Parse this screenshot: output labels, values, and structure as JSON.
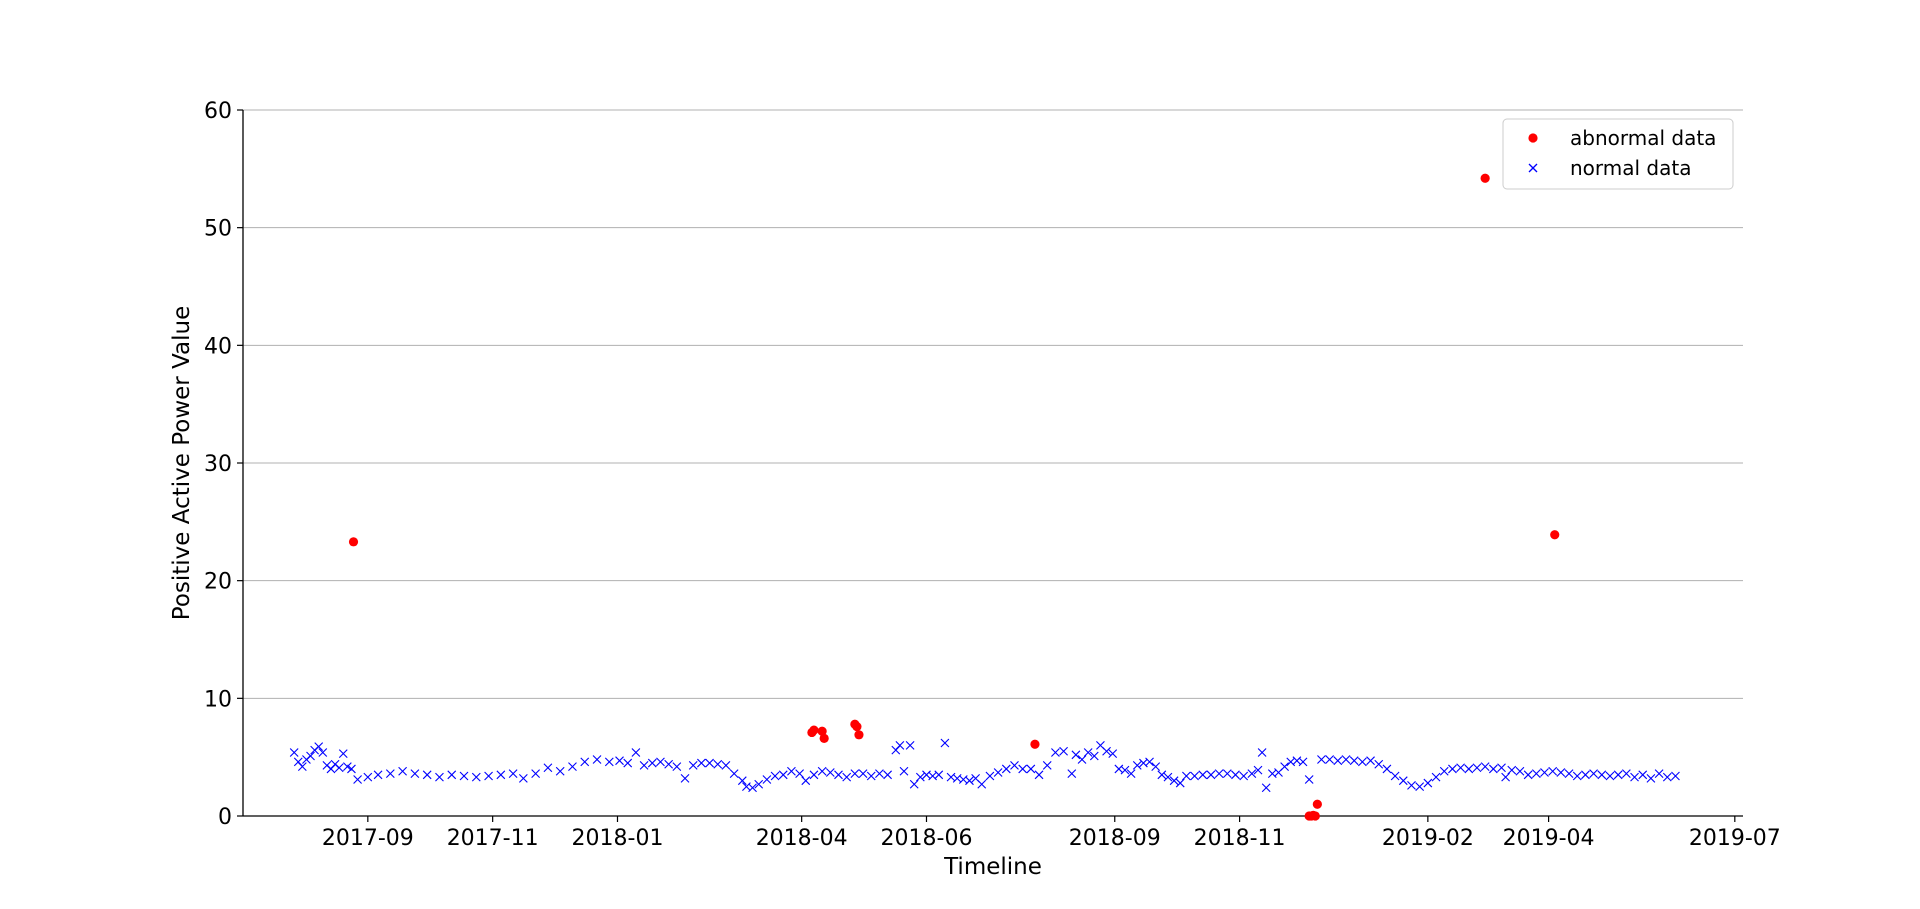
{
  "chart_data": {
    "type": "scatter",
    "xlabel": "Timeline",
    "ylabel": "Positive Active Power Value",
    "ylim": [
      0,
      60
    ],
    "xlim": [
      "2017-07-02",
      "2019-07-05"
    ],
    "yticks": [
      0,
      10,
      20,
      30,
      40,
      50,
      60
    ],
    "xticks": [
      "2017-09",
      "2017-11",
      "2018-01",
      "2018-04",
      "2018-06",
      "2018-09",
      "2018-11",
      "2019-02",
      "2019-04",
      "2019-07"
    ],
    "grid": "horizontal",
    "legend_position": "top-right",
    "series": [
      {
        "name": "abnormal data",
        "marker": "circle",
        "color": "#ff0000",
        "points": [
          [
            "2017-08-25",
            23.3
          ],
          [
            "2018-04-06",
            7.1
          ],
          [
            "2018-04-07",
            7.3
          ],
          [
            "2018-04-11",
            7.2
          ],
          [
            "2018-04-12",
            6.6
          ],
          [
            "2018-04-27",
            7.8
          ],
          [
            "2018-04-28",
            7.6
          ],
          [
            "2018-04-29",
            6.9
          ],
          [
            "2018-07-24",
            6.1
          ],
          [
            "2018-12-05",
            0.0
          ],
          [
            "2018-12-06",
            0.0
          ],
          [
            "2018-12-07",
            0.05
          ],
          [
            "2018-12-08",
            0.0
          ],
          [
            "2018-12-09",
            1.0
          ],
          [
            "2019-03-01",
            54.2
          ],
          [
            "2019-04-04",
            23.9
          ]
        ]
      },
      {
        "name": "normal data",
        "marker": "x",
        "color": "#0000ff",
        "points": [
          [
            "2017-07-27",
            5.4
          ],
          [
            "2017-07-29",
            4.6
          ],
          [
            "2017-07-31",
            4.2
          ],
          [
            "2017-08-02",
            4.8
          ],
          [
            "2017-08-04",
            5.1
          ],
          [
            "2017-08-06",
            5.6
          ],
          [
            "2017-08-08",
            5.9
          ],
          [
            "2017-08-10",
            5.4
          ],
          [
            "2017-08-12",
            4.3
          ],
          [
            "2017-08-14",
            4.0
          ],
          [
            "2017-08-16",
            4.4
          ],
          [
            "2017-08-18",
            4.1
          ],
          [
            "2017-08-20",
            5.3
          ],
          [
            "2017-08-22",
            4.2
          ],
          [
            "2017-08-24",
            4.0
          ],
          [
            "2017-08-27",
            3.1
          ],
          [
            "2017-09-01",
            3.3
          ],
          [
            "2017-09-06",
            3.5
          ],
          [
            "2017-09-12",
            3.6
          ],
          [
            "2017-09-18",
            3.8
          ],
          [
            "2017-09-24",
            3.6
          ],
          [
            "2017-09-30",
            3.5
          ],
          [
            "2017-10-06",
            3.3
          ],
          [
            "2017-10-12",
            3.5
          ],
          [
            "2017-10-18",
            3.4
          ],
          [
            "2017-10-24",
            3.3
          ],
          [
            "2017-10-30",
            3.4
          ],
          [
            "2017-11-05",
            3.5
          ],
          [
            "2017-11-11",
            3.6
          ],
          [
            "2017-11-16",
            3.2
          ],
          [
            "2017-11-22",
            3.6
          ],
          [
            "2017-11-28",
            4.1
          ],
          [
            "2017-12-04",
            3.8
          ],
          [
            "2017-12-10",
            4.2
          ],
          [
            "2017-12-16",
            4.6
          ],
          [
            "2017-12-22",
            4.8
          ],
          [
            "2017-12-28",
            4.6
          ],
          [
            "2018-01-02",
            4.7
          ],
          [
            "2018-01-06",
            4.5
          ],
          [
            "2018-01-10",
            5.4
          ],
          [
            "2018-01-14",
            4.3
          ],
          [
            "2018-01-18",
            4.5
          ],
          [
            "2018-01-22",
            4.6
          ],
          [
            "2018-01-26",
            4.4
          ],
          [
            "2018-01-30",
            4.2
          ],
          [
            "2018-02-03",
            3.2
          ],
          [
            "2018-02-07",
            4.3
          ],
          [
            "2018-02-11",
            4.5
          ],
          [
            "2018-02-15",
            4.5
          ],
          [
            "2018-02-19",
            4.4
          ],
          [
            "2018-02-23",
            4.3
          ],
          [
            "2018-02-27",
            3.6
          ],
          [
            "2018-03-03",
            3.0
          ],
          [
            "2018-03-05",
            2.5
          ],
          [
            "2018-03-08",
            2.4
          ],
          [
            "2018-03-11",
            2.7
          ],
          [
            "2018-03-15",
            3.1
          ],
          [
            "2018-03-19",
            3.4
          ],
          [
            "2018-03-23",
            3.5
          ],
          [
            "2018-03-27",
            3.8
          ],
          [
            "2018-03-31",
            3.6
          ],
          [
            "2018-04-03",
            3.0
          ],
          [
            "2018-04-07",
            3.5
          ],
          [
            "2018-04-11",
            3.8
          ],
          [
            "2018-04-15",
            3.7
          ],
          [
            "2018-04-19",
            3.5
          ],
          [
            "2018-04-23",
            3.3
          ],
          [
            "2018-04-27",
            3.6
          ],
          [
            "2018-05-01",
            3.6
          ],
          [
            "2018-05-05",
            3.4
          ],
          [
            "2018-05-09",
            3.6
          ],
          [
            "2018-05-13",
            3.5
          ],
          [
            "2018-05-17",
            5.6
          ],
          [
            "2018-05-19",
            6.0
          ],
          [
            "2018-05-21",
            3.8
          ],
          [
            "2018-05-24",
            6.0
          ],
          [
            "2018-05-26",
            2.7
          ],
          [
            "2018-05-29",
            3.3
          ],
          [
            "2018-06-01",
            3.5
          ],
          [
            "2018-06-04",
            3.4
          ],
          [
            "2018-06-07",
            3.5
          ],
          [
            "2018-06-10",
            6.2
          ],
          [
            "2018-06-13",
            3.3
          ],
          [
            "2018-06-16",
            3.2
          ],
          [
            "2018-06-19",
            3.1
          ],
          [
            "2018-06-22",
            3.0
          ],
          [
            "2018-06-25",
            3.2
          ],
          [
            "2018-06-28",
            2.7
          ],
          [
            "2018-07-02",
            3.4
          ],
          [
            "2018-07-06",
            3.7
          ],
          [
            "2018-07-10",
            4.0
          ],
          [
            "2018-07-14",
            4.3
          ],
          [
            "2018-07-18",
            4.0
          ],
          [
            "2018-07-22",
            4.0
          ],
          [
            "2018-07-26",
            3.5
          ],
          [
            "2018-07-30",
            4.3
          ],
          [
            "2018-08-03",
            5.4
          ],
          [
            "2018-08-07",
            5.5
          ],
          [
            "2018-08-11",
            3.6
          ],
          [
            "2018-08-13",
            5.2
          ],
          [
            "2018-08-16",
            4.8
          ],
          [
            "2018-08-19",
            5.4
          ],
          [
            "2018-08-22",
            5.1
          ],
          [
            "2018-08-25",
            6.0
          ],
          [
            "2018-08-28",
            5.5
          ],
          [
            "2018-08-31",
            5.3
          ],
          [
            "2018-09-03",
            4.0
          ],
          [
            "2018-09-06",
            3.9
          ],
          [
            "2018-09-09",
            3.6
          ],
          [
            "2018-09-12",
            4.3
          ],
          [
            "2018-09-15",
            4.5
          ],
          [
            "2018-09-18",
            4.6
          ],
          [
            "2018-09-21",
            4.2
          ],
          [
            "2018-09-24",
            3.5
          ],
          [
            "2018-09-27",
            3.3
          ],
          [
            "2018-09-30",
            3.0
          ],
          [
            "2018-10-03",
            2.8
          ],
          [
            "2018-10-06",
            3.4
          ],
          [
            "2018-10-10",
            3.4
          ],
          [
            "2018-10-14",
            3.5
          ],
          [
            "2018-10-18",
            3.5
          ],
          [
            "2018-10-22",
            3.6
          ],
          [
            "2018-10-26",
            3.6
          ],
          [
            "2018-10-30",
            3.5
          ],
          [
            "2018-11-03",
            3.4
          ],
          [
            "2018-11-07",
            3.6
          ],
          [
            "2018-11-10",
            3.9
          ],
          [
            "2018-11-12",
            5.4
          ],
          [
            "2018-11-14",
            2.4
          ],
          [
            "2018-11-17",
            3.6
          ],
          [
            "2018-11-20",
            3.7
          ],
          [
            "2018-11-23",
            4.2
          ],
          [
            "2018-11-26",
            4.6
          ],
          [
            "2018-11-29",
            4.7
          ],
          [
            "2018-12-02",
            4.6
          ],
          [
            "2018-12-05",
            3.1
          ],
          [
            "2018-12-11",
            4.8
          ],
          [
            "2018-12-15",
            4.8
          ],
          [
            "2018-12-19",
            4.7
          ],
          [
            "2018-12-23",
            4.8
          ],
          [
            "2018-12-27",
            4.7
          ],
          [
            "2018-12-31",
            4.6
          ],
          [
            "2019-01-04",
            4.7
          ],
          [
            "2019-01-08",
            4.4
          ],
          [
            "2019-01-12",
            4.0
          ],
          [
            "2019-01-16",
            3.4
          ],
          [
            "2019-01-20",
            3.0
          ],
          [
            "2019-01-24",
            2.6
          ],
          [
            "2019-01-28",
            2.5
          ],
          [
            "2019-02-01",
            2.8
          ],
          [
            "2019-02-05",
            3.3
          ],
          [
            "2019-02-09",
            3.8
          ],
          [
            "2019-02-13",
            4.0
          ],
          [
            "2019-02-17",
            4.1
          ],
          [
            "2019-02-21",
            4.0
          ],
          [
            "2019-02-25",
            4.1
          ],
          [
            "2019-03-01",
            4.2
          ],
          [
            "2019-03-05",
            4.0
          ],
          [
            "2019-03-09",
            4.1
          ],
          [
            "2019-03-11",
            3.3
          ],
          [
            "2019-03-14",
            3.9
          ],
          [
            "2019-03-18",
            3.8
          ],
          [
            "2019-03-22",
            3.5
          ],
          [
            "2019-03-26",
            3.6
          ],
          [
            "2019-03-30",
            3.7
          ],
          [
            "2019-04-03",
            3.8
          ],
          [
            "2019-04-07",
            3.7
          ],
          [
            "2019-04-11",
            3.6
          ],
          [
            "2019-04-15",
            3.4
          ],
          [
            "2019-04-19",
            3.5
          ],
          [
            "2019-04-23",
            3.6
          ],
          [
            "2019-04-27",
            3.5
          ],
          [
            "2019-05-01",
            3.4
          ],
          [
            "2019-05-05",
            3.5
          ],
          [
            "2019-05-09",
            3.6
          ],
          [
            "2019-05-13",
            3.3
          ],
          [
            "2019-05-17",
            3.5
          ],
          [
            "2019-05-21",
            3.2
          ],
          [
            "2019-05-25",
            3.6
          ],
          [
            "2019-05-29",
            3.3
          ],
          [
            "2019-06-02",
            3.4
          ]
        ]
      }
    ]
  }
}
